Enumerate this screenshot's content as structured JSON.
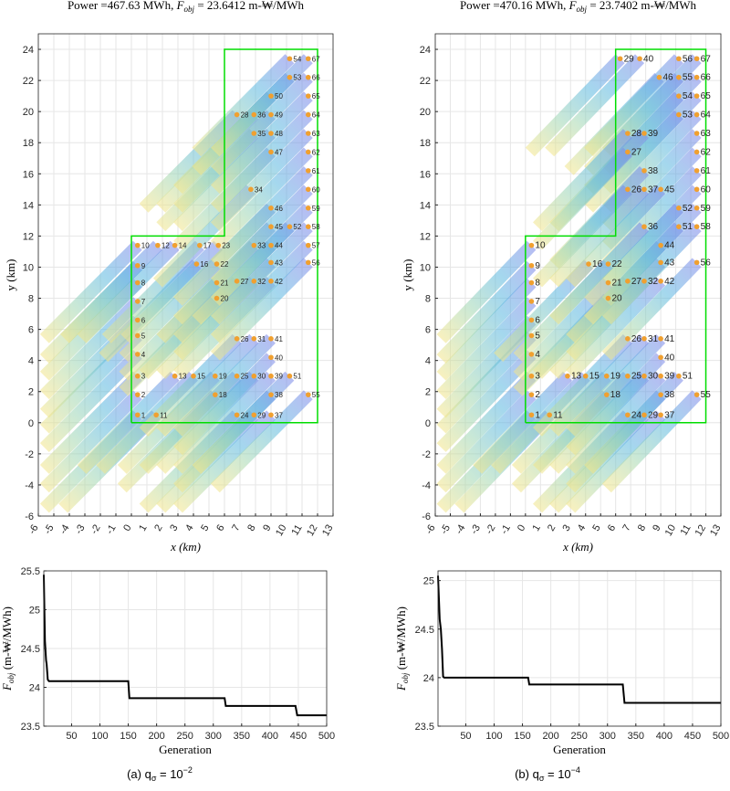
{
  "chart_data": [
    {
      "type": "scatter",
      "panel": "a-layout",
      "title_prefix": "Power =467.63 MWh,  ",
      "title_fobj_label": "F",
      "title_fobj_sub": "obj",
      "title_suffix": " = 23.6412 m-₩/MWh",
      "xlabel": "x (km)",
      "ylabel": "y (km)",
      "xlim": [
        -6,
        13
      ],
      "ylim": [
        -6,
        25
      ],
      "xticks": [
        -6,
        -5,
        -4,
        -3,
        -2,
        -1,
        0,
        1,
        2,
        3,
        4,
        5,
        6,
        7,
        8,
        9,
        10,
        11,
        12,
        13
      ],
      "yticks": [
        -6,
        -4,
        -2,
        0,
        2,
        4,
        6,
        8,
        10,
        12,
        14,
        16,
        18,
        20,
        22,
        24
      ],
      "grid": true,
      "turbines": [
        {
          "id": "1",
          "x": 0.4,
          "y": 0.5
        },
        {
          "id": "2",
          "x": 0.4,
          "y": 1.8
        },
        {
          "id": "3",
          "x": 0.4,
          "y": 3.0
        },
        {
          "id": "4",
          "x": 0.4,
          "y": 4.4
        },
        {
          "id": "5",
          "x": 0.4,
          "y": 5.6
        },
        {
          "id": "6",
          "x": 0.4,
          "y": 6.6
        },
        {
          "id": "7",
          "x": 0.4,
          "y": 7.8
        },
        {
          "id": "8",
          "x": 0.4,
          "y": 9.0
        },
        {
          "id": "9",
          "x": 0.4,
          "y": 10.1
        },
        {
          "id": "10",
          "x": 0.4,
          "y": 11.4
        },
        {
          "id": "11",
          "x": 1.6,
          "y": 0.5
        },
        {
          "id": "12",
          "x": 1.7,
          "y": 11.4
        },
        {
          "id": "13",
          "x": 2.8,
          "y": 3.0
        },
        {
          "id": "14",
          "x": 2.8,
          "y": 11.4
        },
        {
          "id": "15",
          "x": 4.0,
          "y": 3.0
        },
        {
          "id": "16",
          "x": 4.2,
          "y": 10.2
        },
        {
          "id": "17",
          "x": 4.4,
          "y": 11.4
        },
        {
          "id": "18",
          "x": 5.4,
          "y": 1.8
        },
        {
          "id": "19",
          "x": 5.4,
          "y": 3.0
        },
        {
          "id": "20",
          "x": 5.5,
          "y": 8.0
        },
        {
          "id": "21",
          "x": 5.5,
          "y": 9.0
        },
        {
          "id": "22",
          "x": 5.5,
          "y": 10.2
        },
        {
          "id": "23",
          "x": 5.6,
          "y": 11.4
        },
        {
          "id": "24",
          "x": 6.8,
          "y": 0.5
        },
        {
          "id": "25",
          "x": 6.8,
          "y": 3.0
        },
        {
          "id": "26",
          "x": 6.8,
          "y": 5.4
        },
        {
          "id": "27",
          "x": 6.8,
          "y": 9.1
        },
        {
          "id": "28",
          "x": 6.8,
          "y": 19.8
        },
        {
          "id": "29",
          "x": 7.9,
          "y": 0.5
        },
        {
          "id": "30",
          "x": 7.9,
          "y": 3.0
        },
        {
          "id": "31",
          "x": 7.9,
          "y": 5.4
        },
        {
          "id": "32",
          "x": 7.9,
          "y": 9.1
        },
        {
          "id": "33",
          "x": 7.9,
          "y": 11.4
        },
        {
          "id": "34",
          "x": 7.7,
          "y": 15.0
        },
        {
          "id": "35",
          "x": 7.9,
          "y": 18.6
        },
        {
          "id": "36",
          "x": 7.9,
          "y": 19.8
        },
        {
          "id": "37",
          "x": 9.0,
          "y": 0.5
        },
        {
          "id": "38",
          "x": 9.0,
          "y": 1.8
        },
        {
          "id": "39",
          "x": 9.0,
          "y": 3.0
        },
        {
          "id": "40",
          "x": 9.0,
          "y": 4.2
        },
        {
          "id": "41",
          "x": 9.0,
          "y": 5.4
        },
        {
          "id": "42",
          "x": 9.0,
          "y": 9.1
        },
        {
          "id": "43",
          "x": 9.0,
          "y": 10.3
        },
        {
          "id": "44",
          "x": 9.0,
          "y": 11.4
        },
        {
          "id": "45",
          "x": 9.0,
          "y": 12.6
        },
        {
          "id": "46",
          "x": 9.0,
          "y": 13.8
        },
        {
          "id": "47",
          "x": 9.0,
          "y": 17.4
        },
        {
          "id": "48",
          "x": 9.0,
          "y": 18.6
        },
        {
          "id": "49",
          "x": 9.0,
          "y": 19.8
        },
        {
          "id": "50",
          "x": 9.0,
          "y": 21.0
        },
        {
          "id": "51",
          "x": 10.2,
          "y": 3.0
        },
        {
          "id": "52",
          "x": 10.2,
          "y": 12.6
        },
        {
          "id": "53",
          "x": 10.2,
          "y": 22.2
        },
        {
          "id": "54",
          "x": 10.2,
          "y": 23.4
        },
        {
          "id": "55",
          "x": 11.4,
          "y": 1.8
        },
        {
          "id": "56",
          "x": 11.4,
          "y": 10.3
        },
        {
          "id": "57",
          "x": 11.4,
          "y": 11.4
        },
        {
          "id": "58",
          "x": 11.4,
          "y": 12.6
        },
        {
          "id": "59",
          "x": 11.4,
          "y": 13.8
        },
        {
          "id": "60",
          "x": 11.4,
          "y": 15.0
        },
        {
          "id": "61",
          "x": 11.4,
          "y": 16.2
        },
        {
          "id": "62",
          "x": 11.4,
          "y": 17.4
        },
        {
          "id": "63",
          "x": 11.4,
          "y": 18.6
        },
        {
          "id": "64",
          "x": 11.4,
          "y": 19.8
        },
        {
          "id": "65",
          "x": 11.4,
          "y": 21.0
        },
        {
          "id": "66",
          "x": 11.4,
          "y": 22.2
        },
        {
          "id": "67",
          "x": 11.4,
          "y": 23.4
        }
      ],
      "boundary": [
        [
          0,
          0
        ],
        [
          0,
          12
        ],
        [
          6,
          12
        ],
        [
          6,
          24
        ],
        [
          12,
          24
        ],
        [
          12,
          0
        ]
      ],
      "boundary_color": "#00dd00",
      "turbine_color": "#f0a030",
      "caption": "(a) q",
      "caption_sub": "σ",
      "caption_tail": " = 10",
      "caption_exp": "−2"
    },
    {
      "type": "scatter",
      "panel": "b-layout",
      "title_prefix": "Power =470.16 MWh,  ",
      "title_fobj_label": "F",
      "title_fobj_sub": "obj",
      "title_suffix": " = 23.7402 m-₩/MWh",
      "xlabel": "x (km)",
      "ylabel": "y (km)",
      "xlim": [
        -6,
        13
      ],
      "ylim": [
        -6,
        25
      ],
      "xticks": [
        -6,
        -5,
        -4,
        -3,
        -2,
        -1,
        0,
        1,
        2,
        3,
        4,
        5,
        6,
        7,
        8,
        9,
        10,
        11,
        12,
        13
      ],
      "yticks": [
        -6,
        -4,
        -2,
        0,
        2,
        4,
        6,
        8,
        10,
        12,
        14,
        16,
        18,
        20,
        22,
        24
      ],
      "grid": true,
      "turbines": [
        {
          "id": "1",
          "x": 0.4,
          "y": 0.5
        },
        {
          "id": "2",
          "x": 0.4,
          "y": 1.8
        },
        {
          "id": "3",
          "x": 0.4,
          "y": 3.0
        },
        {
          "id": "4",
          "x": 0.4,
          "y": 4.4
        },
        {
          "id": "5",
          "x": 0.4,
          "y": 5.6
        },
        {
          "id": "6",
          "x": 0.4,
          "y": 6.6
        },
        {
          "id": "7",
          "x": 0.4,
          "y": 7.8
        },
        {
          "id": "8",
          "x": 0.4,
          "y": 9.0
        },
        {
          "id": "9",
          "x": 0.4,
          "y": 10.1
        },
        {
          "id": "10",
          "x": 0.4,
          "y": 11.4
        },
        {
          "id": "11",
          "x": 1.6,
          "y": 0.5
        },
        {
          "id": "13",
          "x": 2.8,
          "y": 3.0
        },
        {
          "id": "15",
          "x": 4.0,
          "y": 3.0
        },
        {
          "id": "16",
          "x": 4.2,
          "y": 10.2
        },
        {
          "id": "18",
          "x": 5.4,
          "y": 1.8
        },
        {
          "id": "19",
          "x": 5.4,
          "y": 3.0
        },
        {
          "id": "20",
          "x": 5.5,
          "y": 8.0
        },
        {
          "id": "21",
          "x": 5.5,
          "y": 9.0
        },
        {
          "id": "22",
          "x": 5.5,
          "y": 10.2
        },
        {
          "id": "24",
          "x": 6.8,
          "y": 0.5
        },
        {
          "id": "25",
          "x": 6.8,
          "y": 3.0
        },
        {
          "id": "26",
          "x": 6.8,
          "y": 5.4
        },
        {
          "id": "27",
          "x": 6.8,
          "y": 9.1
        },
        {
          "id": "29",
          "x": 7.9,
          "y": 0.5
        },
        {
          "id": "30",
          "x": 7.9,
          "y": 3.0
        },
        {
          "id": "31",
          "x": 7.9,
          "y": 5.4
        },
        {
          "id": "32",
          "x": 7.9,
          "y": 9.1
        },
        {
          "id": "37",
          "x": 9.0,
          "y": 0.5
        },
        {
          "id": "38",
          "x": 9.0,
          "y": 1.8
        },
        {
          "id": "39",
          "x": 9.0,
          "y": 3.0
        },
        {
          "id": "40",
          "x": 9.0,
          "y": 4.2
        },
        {
          "id": "41",
          "x": 9.0,
          "y": 5.4
        },
        {
          "id": "42",
          "x": 9.0,
          "y": 9.1
        },
        {
          "id": "43",
          "x": 9.0,
          "y": 10.3
        },
        {
          "id": "44",
          "x": 9.0,
          "y": 11.4
        },
        {
          "id": "51",
          "x": 10.2,
          "y": 3.0
        },
        {
          "id": "55",
          "x": 11.4,
          "y": 1.8
        },
        {
          "id": "56",
          "x": 11.4,
          "y": 10.3
        },
        {
          "id": "29",
          "x": 6.3,
          "y": 23.4
        },
        {
          "id": "40",
          "x": 7.6,
          "y": 23.4
        },
        {
          "id": "46",
          "x": 8.9,
          "y": 22.2
        },
        {
          "id": "56",
          "x": 10.2,
          "y": 23.4
        },
        {
          "id": "67",
          "x": 11.4,
          "y": 23.4
        },
        {
          "id": "55",
          "x": 10.2,
          "y": 22.2
        },
        {
          "id": "66",
          "x": 11.4,
          "y": 22.2
        },
        {
          "id": "54",
          "x": 10.2,
          "y": 21.0
        },
        {
          "id": "65",
          "x": 11.4,
          "y": 21.0
        },
        {
          "id": "53",
          "x": 10.2,
          "y": 19.8
        },
        {
          "id": "64",
          "x": 11.4,
          "y": 19.8
        },
        {
          "id": "28",
          "x": 6.8,
          "y": 18.6
        },
        {
          "id": "39",
          "x": 7.9,
          "y": 18.6
        },
        {
          "id": "63",
          "x": 11.4,
          "y": 18.6
        },
        {
          "id": "27",
          "x": 6.8,
          "y": 17.4
        },
        {
          "id": "62",
          "x": 11.4,
          "y": 17.4
        },
        {
          "id": "38",
          "x": 7.9,
          "y": 16.2
        },
        {
          "id": "61",
          "x": 11.4,
          "y": 16.2
        },
        {
          "id": "26",
          "x": 6.8,
          "y": 15.0
        },
        {
          "id": "37",
          "x": 7.9,
          "y": 15.0
        },
        {
          "id": "45",
          "x": 9.0,
          "y": 15.0
        },
        {
          "id": "60",
          "x": 11.4,
          "y": 15.0
        },
        {
          "id": "52",
          "x": 10.2,
          "y": 13.8
        },
        {
          "id": "59",
          "x": 11.4,
          "y": 13.8
        },
        {
          "id": "36",
          "x": 7.9,
          "y": 12.6
        },
        {
          "id": "51",
          "x": 10.2,
          "y": 12.6
        },
        {
          "id": "58",
          "x": 11.4,
          "y": 12.6
        }
      ],
      "boundary": [
        [
          0,
          0
        ],
        [
          0,
          12
        ],
        [
          6,
          12
        ],
        [
          6,
          24
        ],
        [
          12,
          24
        ],
        [
          12,
          0
        ]
      ],
      "boundary_color": "#00dd00",
      "turbine_color": "#f0a030",
      "caption": "(b) q",
      "caption_sub": "σ",
      "caption_tail": " = 10",
      "caption_exp": "−4"
    },
    {
      "type": "line",
      "panel": "a-convergence",
      "xlabel": "Generation",
      "ylabel_main": "F",
      "ylabel_sub": "obj",
      "ylabel_unit": "(m-₩/MWh)",
      "xlim": [
        1,
        500
      ],
      "ylim": [
        23.5,
        25.5
      ],
      "xticks": [
        50,
        100,
        150,
        200,
        250,
        300,
        350,
        400,
        450,
        500
      ],
      "yticks": [
        23.5,
        24,
        24.5,
        25,
        25.5
      ],
      "grid": true,
      "x": [
        1,
        3,
        5,
        6,
        8,
        10,
        150,
        152,
        320,
        322,
        445,
        448,
        500
      ],
      "values": [
        25.45,
        24.6,
        24.35,
        24.3,
        24.1,
        24.08,
        24.08,
        23.86,
        23.86,
        23.76,
        23.76,
        23.64,
        23.64
      ]
    },
    {
      "type": "line",
      "panel": "b-convergence",
      "xlabel": "Generation",
      "ylabel_main": "F",
      "ylabel_sub": "obj",
      "ylabel_unit": "(m-₩/MWh)",
      "xlim": [
        1,
        500
      ],
      "ylim": [
        23.5,
        25.1
      ],
      "xticks": [
        50,
        100,
        150,
        200,
        250,
        300,
        350,
        400,
        450,
        500
      ],
      "yticks": [
        23.5,
        24,
        24.5,
        25
      ],
      "grid": true,
      "x": [
        1,
        4,
        6,
        8,
        10,
        12,
        160,
        162,
        327,
        330,
        500
      ],
      "values": [
        25.05,
        24.6,
        24.5,
        24.3,
        24.01,
        24.0,
        24.0,
        23.93,
        23.93,
        23.74,
        23.74
      ]
    }
  ]
}
